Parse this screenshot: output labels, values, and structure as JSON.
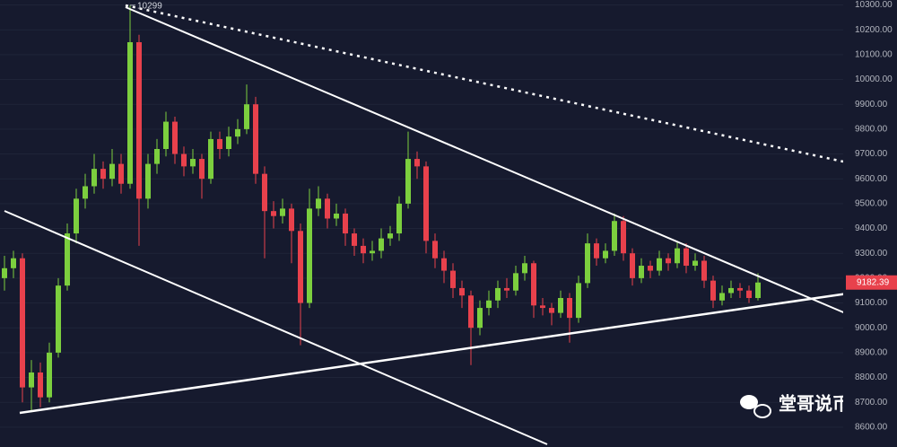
{
  "chart_data": {
    "type": "candlestick",
    "ohlc": [
      [
        9200,
        9290,
        9150,
        9240
      ],
      [
        9240,
        9310,
        9200,
        9280
      ],
      [
        9280,
        9300,
        8700,
        8760
      ],
      [
        8760,
        8870,
        8660,
        8820
      ],
      [
        8820,
        8860,
        8680,
        8720
      ],
      [
        8720,
        8940,
        8700,
        8900
      ],
      [
        8900,
        9200,
        8880,
        9170
      ],
      [
        9170,
        9420,
        9150,
        9380
      ],
      [
        9380,
        9560,
        9340,
        9520
      ],
      [
        9520,
        9620,
        9480,
        9570
      ],
      [
        9570,
        9700,
        9540,
        9640
      ],
      [
        9640,
        9670,
        9560,
        9600
      ],
      [
        9600,
        9720,
        9570,
        9660
      ],
      [
        9660,
        9700,
        9540,
        9580
      ],
      [
        9580,
        10299,
        9560,
        10150
      ],
      [
        10150,
        10180,
        9330,
        9520
      ],
      [
        9520,
        9700,
        9480,
        9660
      ],
      [
        9660,
        9760,
        9620,
        9720
      ],
      [
        9720,
        9870,
        9690,
        9830
      ],
      [
        9830,
        9850,
        9660,
        9700
      ],
      [
        9700,
        9730,
        9610,
        9650
      ],
      [
        9650,
        9720,
        9620,
        9680
      ],
      [
        9680,
        9700,
        9520,
        9600
      ],
      [
        9600,
        9790,
        9580,
        9760
      ],
      [
        9760,
        9790,
        9680,
        9720
      ],
      [
        9720,
        9810,
        9690,
        9770
      ],
      [
        9770,
        9840,
        9740,
        9800
      ],
      [
        9800,
        9980,
        9780,
        9900
      ],
      [
        9900,
        9930,
        9580,
        9620
      ],
      [
        9620,
        9650,
        9280,
        9470
      ],
      [
        9470,
        9510,
        9400,
        9450
      ],
      [
        9450,
        9520,
        9420,
        9480
      ],
      [
        9480,
        9500,
        9260,
        9390
      ],
      [
        9390,
        9420,
        8930,
        9100
      ],
      [
        9100,
        9560,
        9080,
        9480
      ],
      [
        9480,
        9570,
        9450,
        9520
      ],
      [
        9520,
        9540,
        9400,
        9440
      ],
      [
        9440,
        9500,
        9410,
        9460
      ],
      [
        9460,
        9480,
        9330,
        9380
      ],
      [
        9380,
        9400,
        9290,
        9330
      ],
      [
        9330,
        9360,
        9260,
        9300
      ],
      [
        9300,
        9350,
        9270,
        9310
      ],
      [
        9310,
        9400,
        9280,
        9360
      ],
      [
        9360,
        9410,
        9330,
        9380
      ],
      [
        9380,
        9530,
        9350,
        9500
      ],
      [
        9500,
        9790,
        9480,
        9680
      ],
      [
        9680,
        9710,
        9600,
        9650
      ],
      [
        9650,
        9670,
        9300,
        9350
      ],
      [
        9350,
        9380,
        9240,
        9280
      ],
      [
        9280,
        9310,
        9180,
        9230
      ],
      [
        9230,
        9260,
        9120,
        9160
      ],
      [
        9160,
        9190,
        9080,
        9130
      ],
      [
        9130,
        9150,
        8850,
        9000
      ],
      [
        9000,
        9110,
        8970,
        9080
      ],
      [
        9080,
        9150,
        9050,
        9110
      ],
      [
        9110,
        9190,
        9080,
        9160
      ],
      [
        9160,
        9200,
        9120,
        9150
      ],
      [
        9150,
        9250,
        9130,
        9220
      ],
      [
        9220,
        9290,
        9190,
        9260
      ],
      [
        9260,
        9270,
        9040,
        9090
      ],
      [
        9090,
        9120,
        9050,
        9080
      ],
      [
        9080,
        9100,
        9010,
        9060
      ],
      [
        9060,
        9150,
        9040,
        9120
      ],
      [
        9120,
        9140,
        8940,
        9040
      ],
      [
        9040,
        9210,
        9020,
        9180
      ],
      [
        9180,
        9380,
        9160,
        9340
      ],
      [
        9340,
        9360,
        9250,
        9280
      ],
      [
        9280,
        9340,
        9260,
        9310
      ],
      [
        9310,
        9460,
        9290,
        9430
      ],
      [
        9430,
        9450,
        9270,
        9300
      ],
      [
        9300,
        9320,
        9170,
        9200
      ],
      [
        9200,
        9280,
        9180,
        9250
      ],
      [
        9250,
        9270,
        9200,
        9230
      ],
      [
        9230,
        9310,
        9210,
        9280
      ],
      [
        9280,
        9300,
        9230,
        9260
      ],
      [
        9260,
        9350,
        9240,
        9320
      ],
      [
        9320,
        9340,
        9220,
        9250
      ],
      [
        9250,
        9300,
        9230,
        9270
      ],
      [
        9270,
        9290,
        9160,
        9190
      ],
      [
        9190,
        9210,
        9080,
        9110
      ],
      [
        9110,
        9170,
        9090,
        9140
      ],
      [
        9140,
        9190,
        9120,
        9160
      ],
      [
        9160,
        9180,
        9120,
        9150
      ],
      [
        9150,
        9170,
        9100,
        9120
      ],
      [
        9120,
        9220,
        9110,
        9182.39
      ]
    ],
    "up_color": "#7ccf3e",
    "down_color": "#e8414c",
    "ylim": [
      8520,
      10320
    ],
    "yticks": [
      {
        "value": 8600,
        "label": "8600.00"
      },
      {
        "value": 8700,
        "label": "8700.00"
      },
      {
        "value": 8800,
        "label": "8800.00"
      },
      {
        "value": 8900,
        "label": "8900.00"
      },
      {
        "value": 9000,
        "label": "9000.00"
      },
      {
        "value": 9100,
        "label": "9100.00"
      },
      {
        "value": 9200,
        "label": "9200.00"
      },
      {
        "value": 9300,
        "label": "9300.00"
      },
      {
        "value": 9400,
        "label": "9400.00"
      },
      {
        "value": 9500,
        "label": "9500.00"
      },
      {
        "value": 9600,
        "label": "9600.00"
      },
      {
        "value": 9700,
        "label": "9700.00"
      },
      {
        "value": 9800,
        "label": "9800.00"
      },
      {
        "value": 9900,
        "label": "9900.00"
      },
      {
        "value": 10000,
        "label": "10000.00"
      },
      {
        "value": 10100,
        "label": "10100.00"
      },
      {
        "value": 10200,
        "label": "10200.00"
      },
      {
        "value": 10300,
        "label": "10300.00"
      }
    ],
    "watermark": "堂哥说币"
  }
}
